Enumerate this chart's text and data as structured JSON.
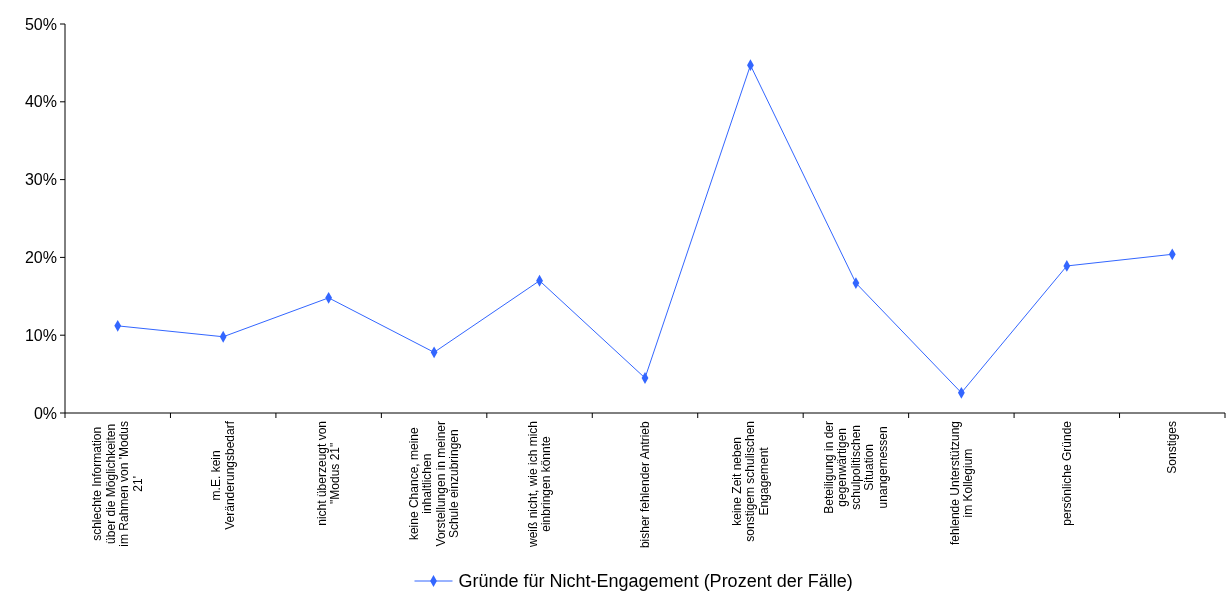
{
  "chart_data": {
    "type": "line",
    "categories": [
      "schlechte Information über die Möglichkeiten im Rahmen von 'Modus 21'",
      "m.E. kein Veränderungsbedarf",
      "nicht überzeugt von \"Modus 21\"",
      "keine Chance, meine inhaltlichen Vorstellungen in meiner Schule einzubringen",
      "weiß nicht, wie ich mich einbringen könnte",
      "bisher fehlender Antrieb",
      "keine Zeit neben sonstigem schulischen Engagement",
      "Beteiligung in der gegenwärtigen schulpolitischen Situation unangemessen",
      "fehlende Unterstützung im Kollegium",
      "persönliche Gründe",
      "Sonstiges"
    ],
    "series": [
      {
        "name": "Gründe für Nicht-Engagement (Prozent der Fälle)",
        "color": "#3366ff",
        "values": [
          11.2,
          9.8,
          14.8,
          7.8,
          17.0,
          4.5,
          44.7,
          16.7,
          2.6,
          18.9,
          20.4
        ]
      }
    ],
    "ylim": [
      0,
      50
    ],
    "yticks": [
      {
        "value": 0,
        "label": "0%"
      },
      {
        "value": 10,
        "label": "10%"
      },
      {
        "value": 20,
        "label": "20%"
      },
      {
        "value": 30,
        "label": "30%"
      },
      {
        "value": 40,
        "label": "40%"
      },
      {
        "value": 50,
        "label": "50%"
      }
    ],
    "grid": false,
    "legend": "bottom",
    "marker": "diamond",
    "line_style": "solid"
  }
}
